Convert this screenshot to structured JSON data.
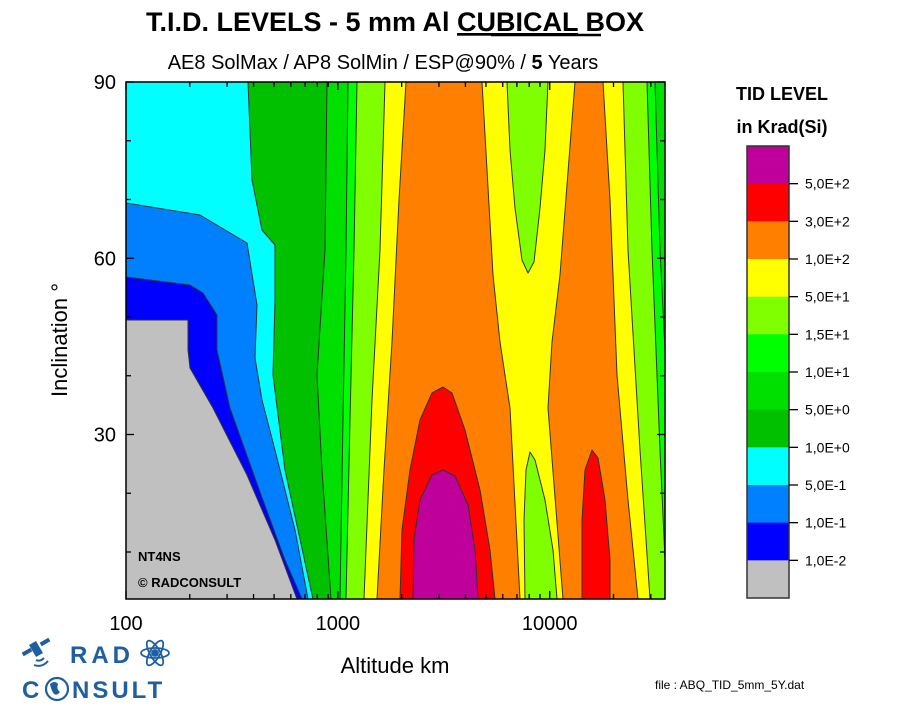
{
  "chart_data": {
    "type": "heatmap",
    "subtype": "filled-contour",
    "title_parts": [
      "T.I.D. LEVELS - 5 mm Al ",
      "CUBICAL",
      " BOX"
    ],
    "subtitle_parts": [
      "AE8 SolMax / AP8 SolMin / ESP@90% / ",
      "5",
      " Years"
    ],
    "xlabel": "Altitude km",
    "ylabel": "Inclination °",
    "xscale": "log",
    "xlim": [
      100,
      35000
    ],
    "ylim": [
      2,
      90
    ],
    "x_ticks": [
      100,
      1000,
      10000
    ],
    "x_tick_labels": [
      "100",
      "1000",
      "10000"
    ],
    "y_ticks": [
      30,
      60,
      90
    ],
    "y_tick_labels": [
      "30",
      "60",
      "90"
    ],
    "legend": {
      "title_line1": "TID LEVEL",
      "title_line2": "in Krad(Si)",
      "placement": "right",
      "colors": [
        "#c0009a",
        "#ff0000",
        "#ff8000",
        "#ffff00",
        "#80ff00",
        "#00ff00",
        "#00e000",
        "#00c000",
        "#00ffff",
        "#0080ff",
        "#0000ff",
        "#c0c0c0"
      ],
      "level_labels": [
        "5,0E+2",
        "3,0E+2",
        "1,0E+2",
        "5,0E+1",
        "1,5E+1",
        "1,0E+1",
        "5,0E+0",
        "1,0E+0",
        "5,0E-1",
        "1,0E-1",
        "1,0E-2"
      ],
      "levels": [
        500,
        300,
        100,
        50,
        15,
        10,
        5,
        1,
        0.5,
        0.1,
        0.01
      ]
    },
    "regions": [
      {
        "level_range": "> 500",
        "description": "peak near 3000 km, inclination < 22"
      },
      {
        "level_range": "300-500",
        "description": "around 3000 km below 37 deg; around 16000 km below 26 deg"
      },
      {
        "level_range": "100-300",
        "description": "2000-7000 km and 11000-25000 km bands"
      },
      {
        "level_range": "< 0.01",
        "description": "below 600 km, low inclinations"
      }
    ],
    "annotations": [
      "NT4NS",
      "© RADCONSULT"
    ]
  },
  "footer": {
    "file_label": "file : ABQ_TID_5mm_5Y.dat"
  },
  "logo": {
    "word1": "RAD",
    "word2_first": "C",
    "word2_rest": "NSULT"
  }
}
